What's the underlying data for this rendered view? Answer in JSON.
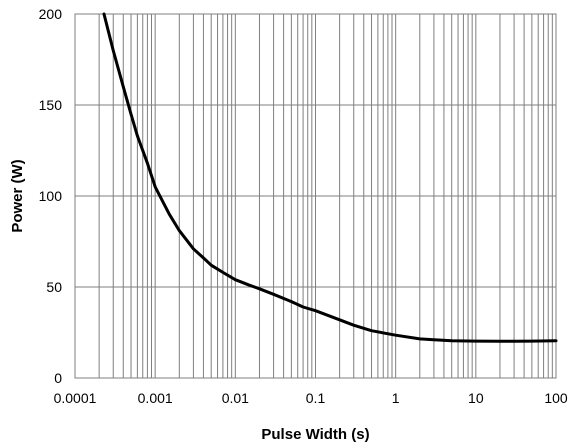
{
  "chart_data": {
    "type": "line",
    "title": "",
    "xlabel": "Pulse Width (s)",
    "ylabel": "Power (W)",
    "x_scale": "log",
    "xlim": [
      0.0001,
      100
    ],
    "ylim": [
      0,
      200
    ],
    "grid": true,
    "x_ticks": [
      {
        "value": 0.0001,
        "label": "0.0001"
      },
      {
        "value": 0.001,
        "label": "0.001"
      },
      {
        "value": 0.01,
        "label": "0.01"
      },
      {
        "value": 0.1,
        "label": "0.1"
      },
      {
        "value": 1,
        "label": "1"
      },
      {
        "value": 10,
        "label": "10"
      },
      {
        "value": 100,
        "label": "100"
      }
    ],
    "y_ticks": [
      {
        "value": 0,
        "label": "0"
      },
      {
        "value": 50,
        "label": "50"
      },
      {
        "value": 100,
        "label": "100"
      },
      {
        "value": 150,
        "label": "150"
      },
      {
        "value": 200,
        "label": "200"
      }
    ],
    "series": [
      {
        "color": "#000000",
        "x": [
          0.00023,
          0.0003,
          0.0004,
          0.0005,
          0.0006,
          0.0008,
          0.001,
          0.0015,
          0.002,
          0.003,
          0.004,
          0.005,
          0.007,
          0.01,
          0.015,
          0.02,
          0.03,
          0.05,
          0.07,
          0.1,
          0.2,
          0.3,
          0.5,
          1,
          2,
          3,
          5,
          10,
          20,
          30,
          50,
          100
        ],
        "y": [
          200,
          180,
          160,
          145,
          133,
          118,
          105,
          90,
          81,
          71,
          66,
          62,
          58,
          54,
          51,
          49,
          46,
          42,
          39,
          37,
          32,
          29,
          26,
          23.5,
          21.5,
          21,
          20.5,
          20.3,
          20.2,
          20.2,
          20.3,
          20.5
        ]
      }
    ]
  }
}
